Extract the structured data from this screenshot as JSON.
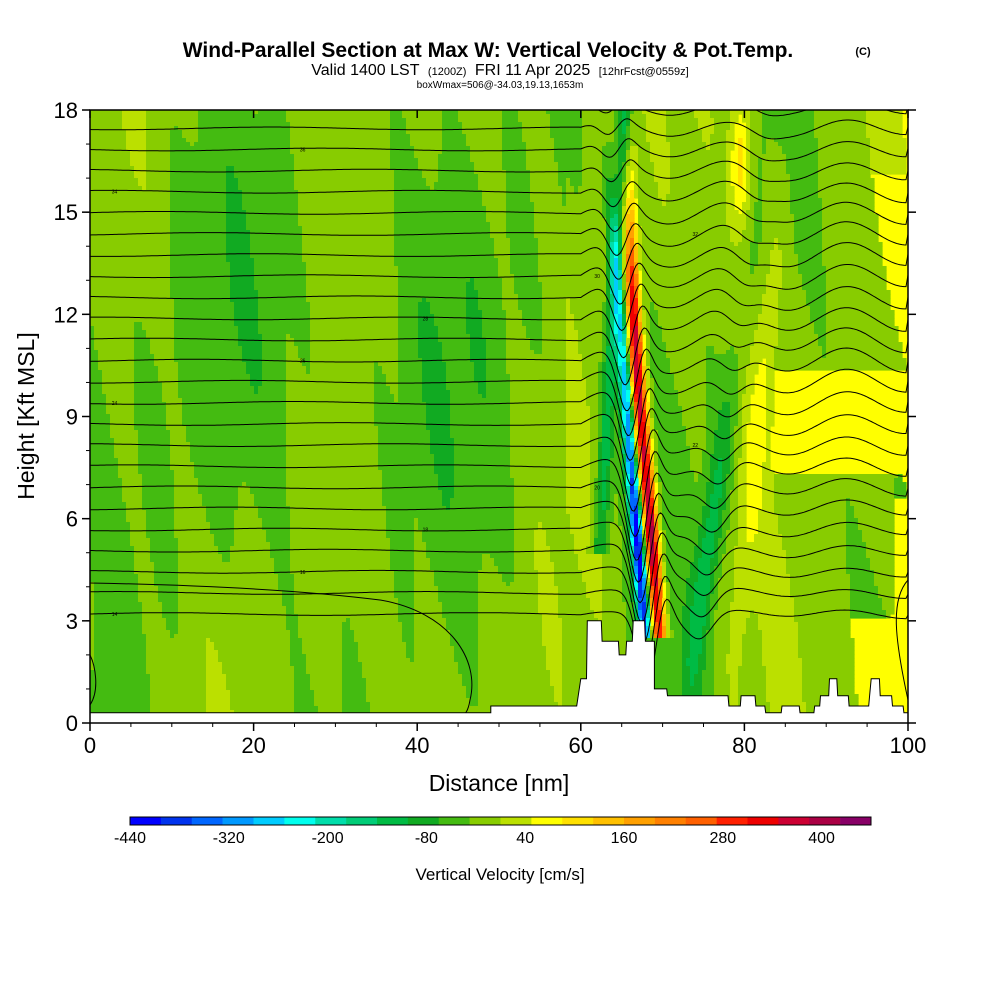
{
  "header": {
    "title": "Wind-Parallel Section at Max W: Vertical Velocity & Pot.Temp.",
    "copyright_mark": "(C)",
    "subtitle_main_1": "Valid 1400 LST",
    "subtitle_zulu": "(1200Z)",
    "subtitle_main_2": "FRI 11 Apr 2025",
    "subtitle_fcst": "[12hrFcst@0559z]",
    "box_info": "boxWmax=506@-34.03,19.13,1653m"
  },
  "chart_data": {
    "type": "heatmap",
    "xlabel": "Distance [nm]",
    "ylabel": "Height [Kft MSL]",
    "xlim": [
      0,
      100
    ],
    "ylim": [
      0,
      18
    ],
    "x_ticks": [
      0,
      20,
      40,
      60,
      80,
      100
    ],
    "y_ticks": [
      0,
      3,
      6,
      9,
      12,
      15,
      18
    ],
    "x_tick_labels": [
      "0",
      "20",
      "40",
      "60",
      "80",
      "100"
    ],
    "y_tick_labels": [
      "0",
      "3",
      "6",
      "9",
      "12",
      "15",
      "18"
    ],
    "colorbar": {
      "title": "Vertical Velocity [cm/s]",
      "tick_labels": [
        "-440",
        "-320",
        "-200",
        "-80",
        "40",
        "160",
        "280",
        "400"
      ],
      "tick_values": [
        -440,
        -320,
        -200,
        -80,
        40,
        160,
        280,
        400
      ],
      "min": -440,
      "max": 460,
      "step": 40,
      "colors": [
        "#0000ff",
        "#0033ee",
        "#0066ff",
        "#0099ff",
        "#00ccff",
        "#00ffee",
        "#00ddaa",
        "#00cc77",
        "#00bb44",
        "#11aa22",
        "#44bb11",
        "#88cc00",
        "#bbe000",
        "#ffff00",
        "#ffe000",
        "#ffc000",
        "#ffa000",
        "#ff8000",
        "#ff6000",
        "#ff2000",
        "#ee0000",
        "#cc0033",
        "#aa0044",
        "#880066"
      ]
    },
    "max_w": 506,
    "terrain_profile": [
      [
        0,
        0.3
      ],
      [
        4.5,
        0.3
      ],
      [
        49,
        0.3
      ],
      [
        49,
        0.5
      ],
      [
        59.5,
        0.5
      ],
      [
        60,
        1.3
      ],
      [
        60.7,
        1.3
      ],
      [
        60.8,
        3.0
      ],
      [
        62.5,
        3.0
      ],
      [
        62.6,
        2.4
      ],
      [
        64.6,
        2.4
      ],
      [
        64.7,
        2.0
      ],
      [
        65.5,
        2.0
      ],
      [
        65.6,
        2.4
      ],
      [
        66.3,
        2.4
      ],
      [
        66.4,
        3.0
      ],
      [
        67.8,
        3.0
      ],
      [
        67.9,
        2.4
      ],
      [
        69,
        2.4
      ],
      [
        69,
        1.0
      ],
      [
        70.5,
        1.0
      ],
      [
        70.6,
        0.8
      ],
      [
        74,
        0.8
      ],
      [
        78,
        0.8
      ],
      [
        78.1,
        0.5
      ],
      [
        79.5,
        0.5
      ],
      [
        79.6,
        0.8
      ],
      [
        81.3,
        0.8
      ],
      [
        81.4,
        0.5
      ],
      [
        82.5,
        0.5
      ],
      [
        82.6,
        0.3
      ],
      [
        84.5,
        0.3
      ],
      [
        84.6,
        0.5
      ],
      [
        86.7,
        0.5
      ],
      [
        86.8,
        0.3
      ],
      [
        88.5,
        0.3
      ],
      [
        88.6,
        0.5
      ],
      [
        89.2,
        0.5
      ],
      [
        89.3,
        0.8
      ],
      [
        90.3,
        0.8
      ],
      [
        90.4,
        1.3
      ],
      [
        91.3,
        1.3
      ],
      [
        91.4,
        0.8
      ],
      [
        92.7,
        0.8
      ],
      [
        92.8,
        0.5
      ],
      [
        95.2,
        0.5
      ],
      [
        95.3,
        0.8
      ],
      [
        95.5,
        1.3
      ],
      [
        96.5,
        1.3
      ],
      [
        96.6,
        0.8
      ],
      [
        98,
        0.8
      ],
      [
        98.1,
        0.5
      ],
      [
        99.4,
        0.5
      ],
      [
        99.5,
        0.3
      ],
      [
        100,
        0.3
      ]
    ],
    "isentrope_labels": [
      "14",
      "16",
      "18",
      "20",
      "22",
      "24",
      "26",
      "28",
      "30",
      "32",
      "34",
      "36",
      "38",
      "40",
      "42",
      "44",
      "46",
      "48",
      "50",
      "52",
      "54",
      "56"
    ]
  }
}
